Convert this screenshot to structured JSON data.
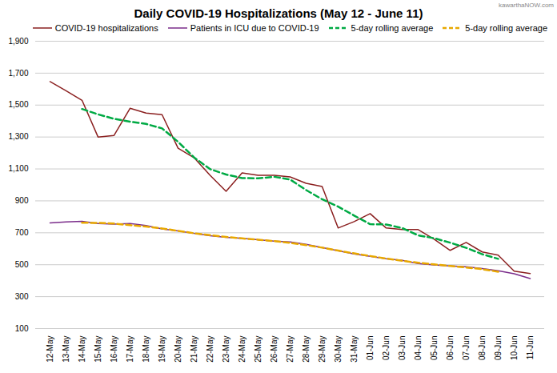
{
  "chart_data": {
    "type": "line",
    "title": "Daily COVID-19 Hospitalizations (May 12 - June 11)",
    "annotations": [
      "kawarthaNOW.com"
    ],
    "categories": [
      "12-May",
      "13-May",
      "14-May",
      "15-May",
      "16-May",
      "17-May",
      "18-May",
      "19-May",
      "20-May",
      "21-May",
      "22-May",
      "23-May",
      "24-May",
      "25-May",
      "26-May",
      "27-May",
      "28-May",
      "29-May",
      "30-May",
      "31-May",
      "01-Jun",
      "02-Jun",
      "03-Jun",
      "04-Jun",
      "05-Jun",
      "06-Jun",
      "07-Jun",
      "08-Jun",
      "09-Jun",
      "10-Jun",
      "11-Jun"
    ],
    "series": [
      {
        "name": "COVID-19 hospitalizations",
        "color": "#8B2020",
        "line_style": "solid",
        "values": [
          1647,
          1590,
          1530,
          1300,
          1310,
          1480,
          1450,
          1440,
          1230,
          1170,
          1060,
          960,
          1075,
          1060,
          1060,
          1050,
          1010,
          990,
          730,
          770,
          820,
          730,
          720,
          720,
          660,
          590,
          640,
          580,
          560,
          460,
          445
        ]
      },
      {
        "name": "Patients in ICU due to COVID-19",
        "color": "#7B2D8B",
        "line_style": "solid",
        "values": [
          762,
          768,
          772,
          758,
          754,
          758,
          746,
          724,
          712,
          696,
          682,
          672,
          665,
          657,
          648,
          643,
          628,
          608,
          588,
          568,
          552,
          538,
          527,
          507,
          498,
          492,
          487,
          476,
          462,
          443,
          413
        ]
      },
      {
        "name": "5-day rolling average",
        "color": "#00AA44",
        "line_style": "dashed",
        "values": [
          null,
          null,
          1475.4,
          1442,
          1414,
          1396,
          1382,
          1354,
          1270,
          1172,
          1099,
          1065,
          1043,
          1041,
          1051,
          1034,
          968,
          910,
          864,
          808,
          754,
          752,
          730,
          684,
          666,
          638,
          606,
          566,
          537,
          null,
          null
        ]
      },
      {
        "name": "5-day rolling average",
        "color": "#E8A800",
        "line_style": "dashed",
        "values": [
          null,
          null,
          762.8,
          762,
          757.6,
          748,
          738.8,
          727.2,
          712,
          697.2,
          685.4,
          674.4,
          664.8,
          657,
          648.2,
          636.8,
          623,
          607,
          588.8,
          570.8,
          554.6,
          538.4,
          524.4,
          512.4,
          502.2,
          492,
          483,
          472,
          456.2,
          null,
          null
        ]
      }
    ],
    "ylim": [
      100,
      1900
    ],
    "yticks": [
      100,
      300,
      500,
      700,
      900,
      {
        "value": 1100,
        "label": "1,100"
      },
      {
        "value": 1300,
        "label": "1,300"
      },
      {
        "value": 1500,
        "label": "1,500"
      },
      {
        "value": 1700,
        "label": "1,700"
      },
      {
        "value": 1900,
        "label": "1,900"
      }
    ],
    "grid": true,
    "legend": "upper right"
  }
}
